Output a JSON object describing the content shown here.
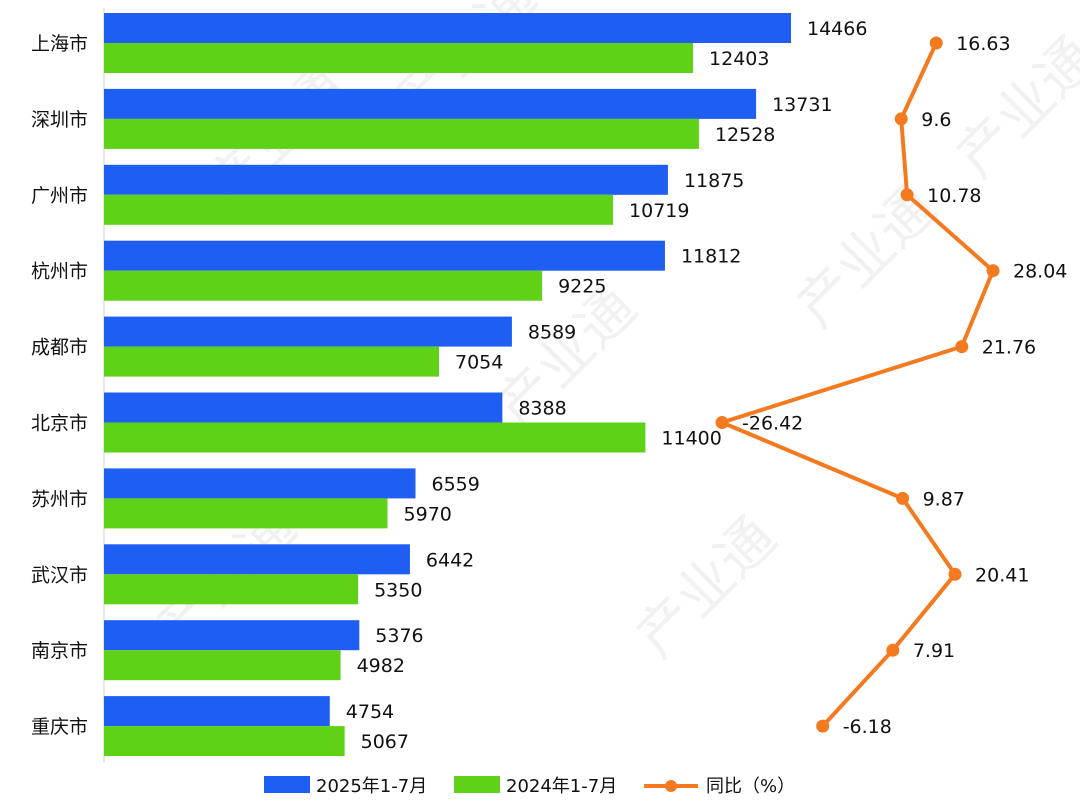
{
  "chart_data": {
    "type": "bar",
    "orientation": "horizontal",
    "categories": [
      "上海市",
      "深圳市",
      "广州市",
      "杭州市",
      "成都市",
      "北京市",
      "苏州市",
      "武汉市",
      "南京市",
      "重庆市"
    ],
    "series": [
      {
        "name": "2025年1-7月",
        "kind": "bar",
        "color": "#1f5ef2",
        "values": [
          14466,
          13731,
          11875,
          11812,
          8589,
          8388,
          6559,
          6442,
          5376,
          4754
        ]
      },
      {
        "name": "2024年1-7月",
        "kind": "bar",
        "color": "#5fd116",
        "values": [
          12403,
          12528,
          10719,
          9225,
          7054,
          11400,
          5970,
          5350,
          4982,
          5067
        ]
      },
      {
        "name": "同比（%）",
        "kind": "line",
        "color": "#f47a20",
        "values": [
          16.63,
          9.6,
          10.78,
          28.04,
          21.76,
          -26.42,
          9.87,
          20.41,
          7.91,
          -6.18
        ]
      }
    ],
    "bar_axis_range": [
      0,
      14466
    ],
    "line_axis_range": [
      -26.42,
      28.04
    ],
    "legend": "bottom",
    "grid": false,
    "watermark": "产业通"
  }
}
